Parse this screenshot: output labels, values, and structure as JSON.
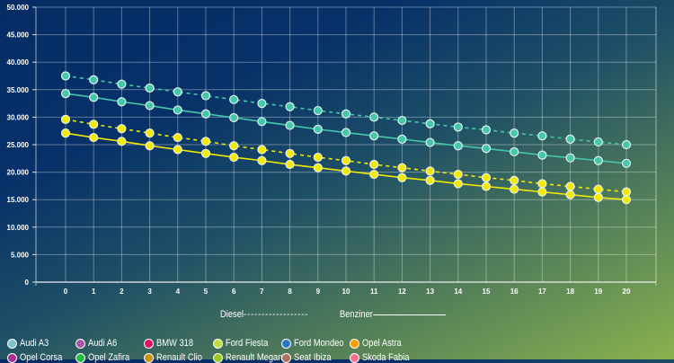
{
  "chart_data": {
    "type": "line",
    "title": "",
    "xlabel": "",
    "ylabel": "",
    "x": [
      0,
      1,
      2,
      3,
      4,
      5,
      6,
      7,
      8,
      9,
      10,
      11,
      12,
      13,
      14,
      15,
      16,
      17,
      18,
      19,
      20
    ],
    "ylim": [
      0,
      50000
    ],
    "yticks": [
      "0",
      "5.000",
      "10.000",
      "15.000",
      "20.000",
      "25.000",
      "30.000",
      "35.000",
      "40.000",
      "45.000",
      "50.000"
    ],
    "grid": true,
    "series": [
      {
        "name": "Audi A3 Diesel",
        "color": "#44c8aa",
        "dash": true,
        "values": [
          37500,
          36800,
          36000,
          35300,
          34600,
          33900,
          33200,
          32500,
          31900,
          31200,
          30600,
          30000,
          29400,
          28800,
          28200,
          27700,
          27100,
          26600,
          26000,
          25500,
          25000
        ]
      },
      {
        "name": "Audi A3 Benziner",
        "color": "#44c8aa",
        "dash": false,
        "values": [
          34300,
          33600,
          32800,
          32100,
          31300,
          30600,
          29900,
          29200,
          28500,
          27800,
          27200,
          26600,
          26000,
          25400,
          24800,
          24300,
          23700,
          23100,
          22600,
          22100,
          21600
        ]
      },
      {
        "name": "Ford Fiesta Diesel",
        "color": "#f2ea00",
        "dash": true,
        "values": [
          29600,
          28700,
          27900,
          27100,
          26300,
          25600,
          24800,
          24100,
          23400,
          22700,
          22100,
          21400,
          20800,
          20200,
          19600,
          19000,
          18500,
          17900,
          17400,
          16900,
          16400
        ]
      },
      {
        "name": "Ford Fiesta Benziner",
        "color": "#f2ea00",
        "dash": false,
        "values": [
          27100,
          26300,
          25600,
          24800,
          24100,
          23400,
          22700,
          22100,
          21400,
          20800,
          20200,
          19600,
          19000,
          18500,
          17900,
          17400,
          16900,
          16400,
          15900,
          15400,
          15000
        ]
      }
    ],
    "line_legend": {
      "diesel": "Diesel",
      "benziner": "Benziner"
    },
    "legend": [
      {
        "label": "Audi A3",
        "color": "#7cc4d0"
      },
      {
        "label": "Audi A6",
        "color": "#a855a8"
      },
      {
        "label": "BMW 318",
        "color": "#e0106a"
      },
      {
        "label": "Ford Fiesta",
        "color": "#c4dc40"
      },
      {
        "label": "Ford Mondeo",
        "color": "#2a7ac0"
      },
      {
        "label": "Opel Astra",
        "color": "#ff9a00"
      },
      {
        "label": "Opel Corsa",
        "color": "#b02c90"
      },
      {
        "label": "Opel Zafira",
        "color": "#22c040"
      },
      {
        "label": "Renault Clio",
        "color": "#c8960a"
      },
      {
        "label": "Renault Megane",
        "color": "#9cc820"
      },
      {
        "label": "Seat Ibiza",
        "color": "#b07060"
      },
      {
        "label": "Skoda Fabia",
        "color": "#ff7090"
      }
    ]
  }
}
